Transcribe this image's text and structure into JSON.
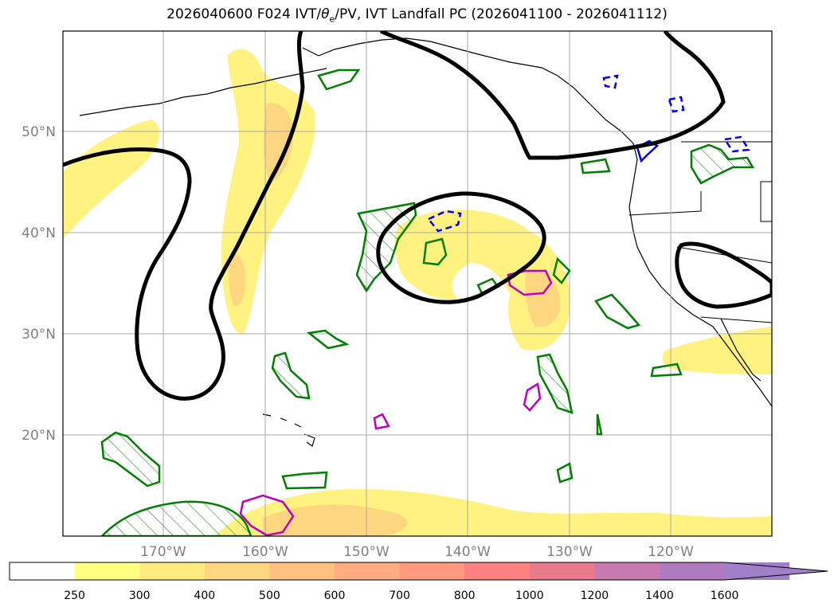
{
  "title": {
    "prefix": "2026040600 F024 IVT/",
    "theta": "θ",
    "theta_sub": "e",
    "suffix": "/PV, IVT Landfall PC (2026041100 - 2026041112)"
  },
  "axes": {
    "lat_labels": [
      "50°N",
      "40°N",
      "30°N",
      "20°N"
    ],
    "lon_labels": [
      "170°W",
      "160°W",
      "150°W",
      "140°W",
      "130°W",
      "120°W"
    ]
  },
  "colorbar": {
    "ticks": [
      "250",
      "300",
      "400",
      "500",
      "600",
      "700",
      "800",
      "1000",
      "1200",
      "1400",
      "1600"
    ],
    "colors": [
      "#ffffff",
      "#ffff80",
      "#ffeb80",
      "#ffd680",
      "#ffc080",
      "#ffac80",
      "#ff9980",
      "#ff8080",
      "#e87a8c",
      "#c87ab0",
      "#b07ac0",
      "#a080c8"
    ]
  },
  "colors": {
    "ivt_low": "#fff280",
    "ivt_mid": "#ffd680",
    "ivt_high": "#ffc070",
    "pc_contour": "#000000",
    "theta_e": "#008000",
    "pv_neg": "#0000ff",
    "pv_pos": "#c000c0"
  }
}
